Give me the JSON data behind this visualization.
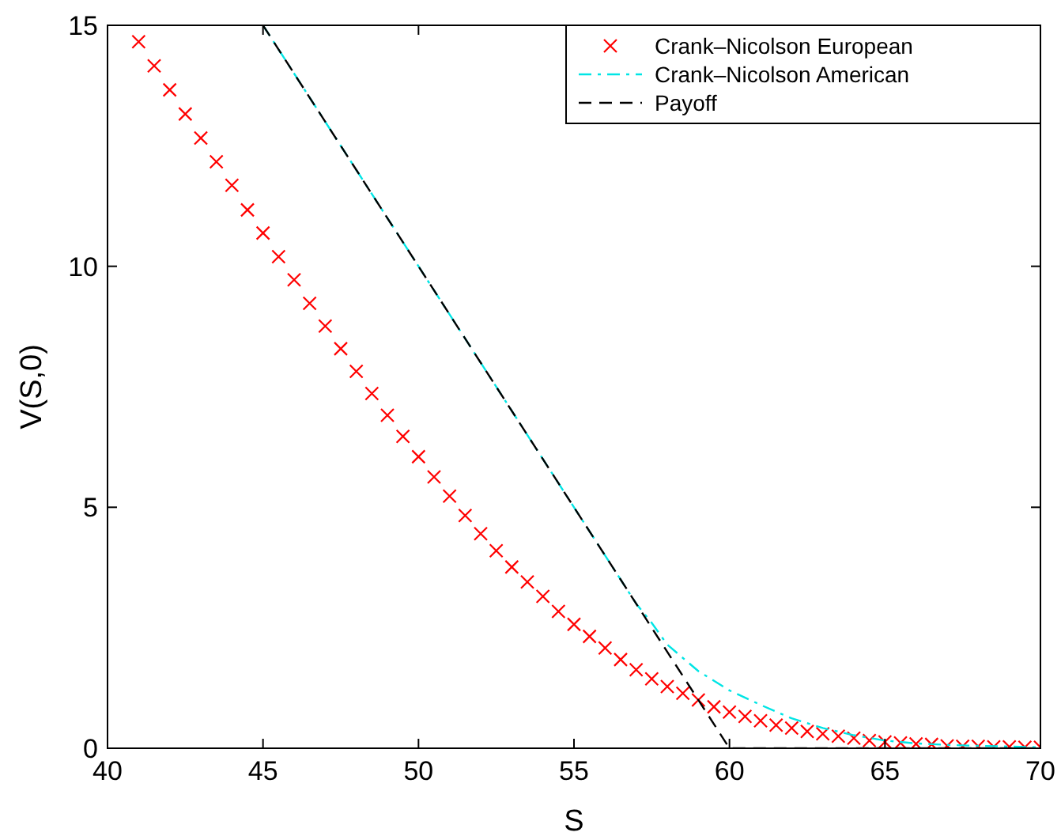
{
  "chart_data": {
    "type": "line",
    "xlabel": "S",
    "ylabel": "V(S,0)",
    "xlim": [
      40,
      70
    ],
    "ylim": [
      0,
      15
    ],
    "xticks": [
      40,
      45,
      50,
      55,
      60,
      65,
      70
    ],
    "yticks": [
      0,
      5,
      10,
      15
    ],
    "grid": false,
    "legend": "top right",
    "series": [
      {
        "name": "Crank–Nicolson European",
        "type": "scatter",
        "marker": "cross",
        "color": "#ff0000",
        "x": [
          41,
          41.5,
          42,
          42.5,
          43,
          43.5,
          44,
          44.5,
          45,
          45.5,
          46,
          46.5,
          47,
          47.5,
          48,
          48.5,
          49,
          49.5,
          50,
          50.5,
          51,
          51.5,
          52,
          52.5,
          53,
          53.5,
          54,
          54.5,
          55,
          55.5,
          56,
          56.5,
          57,
          57.5,
          58,
          58.5,
          59,
          59.5,
          60,
          60.5,
          61,
          61.5,
          62,
          62.5,
          63,
          63.5,
          64,
          64.5,
          65,
          65.5,
          66,
          66.5,
          67,
          67.5,
          68,
          68.5,
          69,
          69.5,
          70
        ],
        "values": [
          14.66,
          14.16,
          13.66,
          13.16,
          12.66,
          12.17,
          11.68,
          11.17,
          10.69,
          10.2,
          9.72,
          9.23,
          8.76,
          8.29,
          7.82,
          7.36,
          6.91,
          6.47,
          6.05,
          5.63,
          5.23,
          4.83,
          4.45,
          4.1,
          3.76,
          3.45,
          3.15,
          2.84,
          2.57,
          2.32,
          2.08,
          1.84,
          1.63,
          1.44,
          1.28,
          1.14,
          1.0,
          0.86,
          0.75,
          0.66,
          0.57,
          0.48,
          0.42,
          0.35,
          0.3,
          0.25,
          0.21,
          0.16,
          0.13,
          0.11,
          0.09,
          0.08,
          0.05,
          0.04,
          0.04,
          0.03,
          0.03,
          0.02,
          0.02
        ]
      },
      {
        "name": "Crank–Nicolson American",
        "line_style": "dashdot",
        "color": "#00e5e5",
        "x": [
          45,
          50,
          55,
          57,
          57.5,
          58,
          59,
          60,
          61,
          62,
          63,
          64,
          65,
          66,
          67,
          68,
          70
        ],
        "values": [
          15,
          10,
          5,
          3,
          2.6,
          2.15,
          1.6,
          1.2,
          0.9,
          0.62,
          0.42,
          0.27,
          0.16,
          0.1,
          0.07,
          0.05,
          0.02
        ]
      },
      {
        "name": "Payoff",
        "line_style": "dashed",
        "color": "#000000",
        "x": [
          45,
          60,
          70
        ],
        "values": [
          15,
          0,
          0
        ]
      }
    ]
  }
}
